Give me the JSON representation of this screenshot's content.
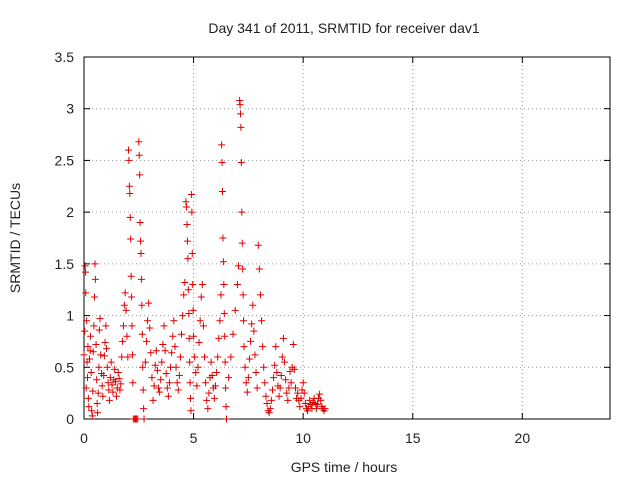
{
  "chart_data": {
    "type": "scatter",
    "title": "Day 341 of 2011, SRMTID for receiver dav1",
    "xlabel": "GPS time / hours",
    "ylabel": "SRMTID / TECUs",
    "xlim": [
      0,
      24
    ],
    "ylim": [
      0,
      3.5
    ],
    "xticks": [
      "0",
      "5",
      "10",
      "15",
      "20"
    ],
    "yticks": [
      "0",
      "0.5",
      "1",
      "1.5",
      "2",
      "2.5",
      "3",
      "3.5"
    ],
    "grid": true,
    "marker": "+",
    "color": "#e00000",
    "series": [
      {
        "name": "SRMTID",
        "points": [
          [
            0.0,
            0.62
          ],
          [
            0.03,
            0.85
          ],
          [
            0.05,
            1.48
          ],
          [
            0.07,
            1.42
          ],
          [
            0.08,
            1.22
          ],
          [
            0.1,
            0.3
          ],
          [
            0.12,
            0.95
          ],
          [
            0.14,
            0.55
          ],
          [
            0.16,
            0.4
          ],
          [
            0.18,
            0.7
          ],
          [
            0.2,
            0.2
          ],
          [
            0.22,
            0.12
          ],
          [
            0.25,
            0.58
          ],
          [
            0.28,
            0.66
          ],
          [
            0.3,
            0.8
          ],
          [
            0.33,
            0.45
          ],
          [
            0.35,
            0.08
          ],
          [
            0.38,
            0.03
          ],
          [
            0.4,
            0.27
          ],
          [
            0.42,
            0.65
          ],
          [
            0.45,
            0.9
          ],
          [
            0.48,
            1.18
          ],
          [
            0.5,
            1.5
          ],
          [
            0.52,
            1.35
          ],
          [
            0.55,
            0.72
          ],
          [
            0.58,
            0.38
          ],
          [
            0.6,
            0.15
          ],
          [
            0.62,
            0.06
          ],
          [
            0.65,
            0.25
          ],
          [
            0.68,
            0.5
          ],
          [
            0.7,
            0.86
          ],
          [
            0.73,
            0.97
          ],
          [
            0.76,
            0.62
          ],
          [
            0.8,
            0.44
          ],
          [
            0.83,
            0.32
          ],
          [
            0.86,
            0.22
          ],
          [
            0.9,
            0.42
          ],
          [
            0.93,
            0.61
          ],
          [
            0.96,
            0.74
          ],
          [
            1.0,
            0.9
          ],
          [
            1.03,
            0.68
          ],
          [
            1.06,
            0.5
          ],
          [
            1.1,
            0.35
          ],
          [
            1.13,
            0.28
          ],
          [
            1.16,
            0.18
          ],
          [
            1.2,
            0.4
          ],
          [
            1.24,
            0.55
          ],
          [
            1.28,
            0.33
          ],
          [
            1.32,
            0.26
          ],
          [
            1.36,
            0.38
          ],
          [
            1.4,
            0.48
          ],
          [
            1.44,
            0.36
          ],
          [
            1.48,
            0.22
          ],
          [
            1.52,
            0.3
          ],
          [
            1.56,
            0.45
          ],
          [
            1.6,
            0.39
          ],
          [
            1.64,
            0.28
          ],
          [
            1.68,
            0.34
          ],
          [
            1.72,
            0.6
          ],
          [
            1.76,
            0.75
          ],
          [
            1.8,
            0.9
          ],
          [
            1.84,
            1.1
          ],
          [
            1.88,
            1.22
          ],
          [
            1.92,
            1.05
          ],
          [
            1.96,
            0.8
          ],
          [
            2.0,
            0.6
          ],
          [
            2.03,
            2.6
          ],
          [
            2.05,
            2.5
          ],
          [
            2.07,
            2.25
          ],
          [
            2.09,
            2.18
          ],
          [
            2.11,
            1.95
          ],
          [
            2.13,
            1.74
          ],
          [
            2.15,
            1.38
          ],
          [
            2.17,
            1.18
          ],
          [
            2.19,
            0.9
          ],
          [
            2.21,
            0.62
          ],
          [
            2.23,
            0.35
          ],
          [
            2.25,
            0.0
          ],
          [
            2.3,
            0.0
          ],
          [
            2.35,
            0.0
          ],
          [
            2.4,
            0.0
          ],
          [
            2.45,
            0.0
          ],
          [
            2.5,
            2.68
          ],
          [
            2.52,
            2.55
          ],
          [
            2.54,
            2.36
          ],
          [
            2.56,
            1.9
          ],
          [
            2.58,
            1.72
          ],
          [
            2.6,
            1.6
          ],
          [
            2.62,
            1.35
          ],
          [
            2.64,
            1.1
          ],
          [
            2.66,
            0.82
          ],
          [
            2.68,
            0.5
          ],
          [
            2.7,
            0.28
          ],
          [
            2.72,
            0.1
          ],
          [
            2.74,
            0.0
          ],
          [
            2.8,
            0.55
          ],
          [
            2.85,
            0.75
          ],
          [
            2.9,
            0.95
          ],
          [
            2.95,
            1.12
          ],
          [
            3.0,
            0.88
          ],
          [
            3.05,
            0.64
          ],
          [
            3.1,
            0.4
          ],
          [
            3.15,
            0.18
          ],
          [
            3.2,
            0.32
          ],
          [
            3.25,
            0.52
          ],
          [
            3.3,
            0.66
          ],
          [
            3.35,
            0.47
          ],
          [
            3.4,
            0.3
          ],
          [
            3.45,
            0.26
          ],
          [
            3.5,
            0.38
          ],
          [
            3.55,
            0.55
          ],
          [
            3.6,
            0.72
          ],
          [
            3.65,
            0.9
          ],
          [
            3.7,
            0.66
          ],
          [
            3.75,
            0.44
          ],
          [
            3.8,
            0.3
          ],
          [
            3.85,
            0.22
          ],
          [
            3.9,
            0.35
          ],
          [
            3.95,
            0.5
          ],
          [
            4.0,
            0.64
          ],
          [
            4.05,
            0.8
          ],
          [
            4.1,
            0.95
          ],
          [
            4.15,
            0.7
          ],
          [
            4.2,
            0.5
          ],
          [
            4.25,
            0.35
          ],
          [
            4.3,
            0.28
          ],
          [
            4.35,
            0.42
          ],
          [
            4.4,
            0.6
          ],
          [
            4.45,
            0.82
          ],
          [
            4.5,
            1.0
          ],
          [
            4.55,
            1.2
          ],
          [
            4.6,
            1.32
          ],
          [
            4.65,
            2.1
          ],
          [
            4.68,
            2.05
          ],
          [
            4.7,
            1.88
          ],
          [
            4.72,
            1.72
          ],
          [
            4.74,
            1.55
          ],
          [
            4.76,
            1.25
          ],
          [
            4.78,
            1.02
          ],
          [
            4.8,
            0.78
          ],
          [
            4.82,
            0.55
          ],
          [
            4.84,
            0.35
          ],
          [
            4.86,
            0.2
          ],
          [
            4.88,
            0.08
          ],
          [
            4.9,
            2.17
          ],
          [
            4.92,
            2.0
          ],
          [
            4.94,
            1.6
          ],
          [
            4.96,
            1.3
          ],
          [
            4.98,
            1.05
          ],
          [
            5.0,
            0.8
          ],
          [
            5.05,
            0.6
          ],
          [
            5.1,
            0.45
          ],
          [
            5.15,
            0.32
          ],
          [
            5.2,
            0.5
          ],
          [
            5.25,
            0.74
          ],
          [
            5.3,
            0.95
          ],
          [
            5.35,
            1.18
          ],
          [
            5.4,
            1.3
          ],
          [
            5.45,
            0.9
          ],
          [
            5.5,
            0.6
          ],
          [
            5.55,
            0.35
          ],
          [
            5.6,
            0.18
          ],
          [
            5.65,
            0.1
          ],
          [
            5.7,
            0.25
          ],
          [
            5.75,
            0.4
          ],
          [
            5.8,
            0.55
          ],
          [
            5.85,
            0.42
          ],
          [
            5.9,
            0.3
          ],
          [
            5.95,
            0.2
          ],
          [
            6.0,
            0.32
          ],
          [
            6.05,
            0.45
          ],
          [
            6.1,
            0.6
          ],
          [
            6.15,
            0.78
          ],
          [
            6.2,
            0.95
          ],
          [
            6.25,
            1.2
          ],
          [
            6.28,
            2.65
          ],
          [
            6.3,
            2.48
          ],
          [
            6.32,
            2.2
          ],
          [
            6.34,
            1.75
          ],
          [
            6.36,
            1.52
          ],
          [
            6.38,
            1.3
          ],
          [
            6.4,
            1.02
          ],
          [
            6.42,
            0.8
          ],
          [
            6.44,
            0.55
          ],
          [
            6.46,
            0.3
          ],
          [
            6.48,
            0.12
          ],
          [
            6.5,
            0.0
          ],
          [
            6.6,
            0.4
          ],
          [
            6.7,
            0.6
          ],
          [
            6.8,
            0.82
          ],
          [
            6.9,
            1.05
          ],
          [
            7.0,
            1.3
          ],
          [
            7.05,
            1.48
          ],
          [
            7.1,
            3.08
          ],
          [
            7.12,
            3.04
          ],
          [
            7.14,
            2.95
          ],
          [
            7.16,
            2.82
          ],
          [
            7.18,
            2.48
          ],
          [
            7.2,
            2.0
          ],
          [
            7.22,
            1.7
          ],
          [
            7.24,
            1.45
          ],
          [
            7.26,
            1.2
          ],
          [
            7.28,
            0.95
          ],
          [
            7.3,
            0.7
          ],
          [
            7.35,
            0.5
          ],
          [
            7.4,
            0.35
          ],
          [
            7.45,
            0.26
          ],
          [
            7.5,
            0.4
          ],
          [
            7.55,
            0.58
          ],
          [
            7.6,
            0.75
          ],
          [
            7.65,
            0.92
          ],
          [
            7.7,
            1.1
          ],
          [
            7.75,
            0.85
          ],
          [
            7.8,
            0.62
          ],
          [
            7.85,
            0.45
          ],
          [
            7.9,
            0.3
          ],
          [
            7.95,
            1.68
          ],
          [
            8.0,
            1.45
          ],
          [
            8.05,
            1.2
          ],
          [
            8.1,
            0.95
          ],
          [
            8.15,
            0.7
          ],
          [
            8.2,
            0.5
          ],
          [
            8.25,
            0.35
          ],
          [
            8.3,
            0.22
          ],
          [
            8.35,
            0.15
          ],
          [
            8.4,
            0.08
          ],
          [
            8.45,
            0.06
          ],
          [
            8.5,
            0.1
          ],
          [
            8.55,
            0.18
          ],
          [
            8.6,
            0.28
          ],
          [
            8.65,
            0.4
          ],
          [
            8.7,
            0.52
          ],
          [
            8.75,
            0.7
          ],
          [
            8.8,
            0.45
          ],
          [
            8.85,
            0.32
          ],
          [
            8.9,
            0.22
          ],
          [
            8.95,
            0.3
          ],
          [
            9.0,
            0.42
          ],
          [
            9.05,
            0.6
          ],
          [
            9.1,
            0.78
          ],
          [
            9.15,
            0.55
          ],
          [
            9.2,
            0.38
          ],
          [
            9.25,
            0.25
          ],
          [
            9.3,
            0.18
          ],
          [
            9.35,
            0.3
          ],
          [
            9.4,
            0.46
          ],
          [
            9.45,
            0.35
          ],
          [
            9.5,
            0.5
          ],
          [
            9.55,
            0.72
          ],
          [
            9.6,
            0.48
          ],
          [
            9.65,
            0.3
          ],
          [
            9.7,
            0.2
          ],
          [
            9.75,
            0.25
          ],
          [
            9.8,
            0.18
          ],
          [
            9.85,
            0.12
          ],
          [
            9.9,
            0.2
          ],
          [
            9.95,
            0.28
          ],
          [
            10.0,
            0.35
          ],
          [
            10.05,
            0.25
          ],
          [
            10.1,
            0.15
          ],
          [
            10.15,
            0.1
          ],
          [
            10.2,
            0.08
          ],
          [
            10.25,
            0.12
          ],
          [
            10.3,
            0.18
          ],
          [
            10.35,
            0.14
          ],
          [
            10.4,
            0.1
          ],
          [
            10.45,
            0.16
          ],
          [
            10.5,
            0.2
          ],
          [
            10.55,
            0.15
          ],
          [
            10.6,
            0.1
          ],
          [
            10.65,
            0.14
          ],
          [
            10.7,
            0.2
          ],
          [
            10.75,
            0.24
          ],
          [
            10.8,
            0.18
          ],
          [
            10.85,
            0.12
          ],
          [
            10.9,
            0.1
          ],
          [
            10.95,
            0.08
          ],
          [
            11.0,
            0.1
          ]
        ]
      }
    ]
  }
}
